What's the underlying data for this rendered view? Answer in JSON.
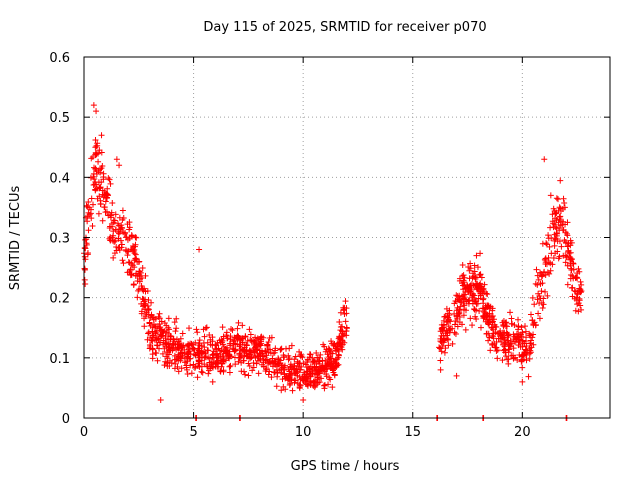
{
  "chart_data": {
    "type": "scatter",
    "title": "Day 115 of 2025, SRMTID for receiver p070",
    "xlabel": "GPS time / hours",
    "ylabel": "SRMTID / TECUs",
    "xlim": [
      0,
      24
    ],
    "ylim": [
      0,
      0.6
    ],
    "xticks": [
      0,
      5,
      10,
      15,
      20
    ],
    "yticks": [
      0,
      0.1,
      0.2,
      0.3,
      0.4,
      0.5,
      0.6
    ],
    "xtick_labels": [
      "0",
      "5",
      "10",
      "15",
      "20"
    ],
    "ytick_labels": [
      "0",
      "0.1",
      "0.2",
      "0.3",
      "0.4",
      "0.5",
      "0.6"
    ],
    "grid": true,
    "marker": "+",
    "color": "#ff0000",
    "segments": [
      {
        "x": [
          0.0,
          0.3,
          0.5,
          0.8,
          1.0,
          1.3,
          1.6,
          2.0,
          2.3,
          2.6,
          3.0,
          3.5,
          4.0,
          4.5,
          5.0,
          5.5,
          6.0,
          6.5,
          7.0,
          7.5,
          8.0,
          8.5,
          9.0,
          9.5,
          10.0,
          10.5,
          11.0,
          11.5,
          12.0
        ],
        "y": [
          0.26,
          0.35,
          0.42,
          0.4,
          0.36,
          0.32,
          0.3,
          0.28,
          0.26,
          0.22,
          0.15,
          0.13,
          0.12,
          0.11,
          0.1,
          0.11,
          0.1,
          0.11,
          0.12,
          0.11,
          0.11,
          0.1,
          0.09,
          0.08,
          0.08,
          0.08,
          0.09,
          0.1,
          0.17
        ]
      },
      {
        "x": [
          16.2,
          16.5,
          16.8,
          17.0,
          17.3,
          17.6,
          17.9,
          18.2,
          18.5,
          18.8,
          19.1,
          19.4,
          19.7,
          20.0,
          20.3,
          20.6,
          20.9,
          21.2,
          21.5,
          21.8,
          22.1,
          22.4,
          22.7
        ],
        "y": [
          0.12,
          0.14,
          0.16,
          0.18,
          0.2,
          0.21,
          0.22,
          0.2,
          0.16,
          0.14,
          0.13,
          0.12,
          0.14,
          0.12,
          0.11,
          0.18,
          0.22,
          0.27,
          0.32,
          0.33,
          0.28,
          0.22,
          0.2
        ]
      }
    ],
    "zero_points_x": [
      5.1,
      7.1,
      16.1,
      18.2,
      22.0
    ],
    "spread": 0.05,
    "peak_points": [
      {
        "x": 0.45,
        "y": 0.52
      },
      {
        "x": 0.55,
        "y": 0.51
      },
      {
        "x": 0.8,
        "y": 0.47
      },
      {
        "x": 1.5,
        "y": 0.43
      },
      {
        "x": 1.6,
        "y": 0.42
      },
      {
        "x": 5.25,
        "y": 0.28
      },
      {
        "x": 21.0,
        "y": 0.43
      },
      {
        "x": 21.3,
        "y": 0.37
      },
      {
        "x": 3.5,
        "y": 0.03
      },
      {
        "x": 10.0,
        "y": 0.03
      },
      {
        "x": 17.0,
        "y": 0.07
      },
      {
        "x": 20.0,
        "y": 0.06
      }
    ]
  }
}
